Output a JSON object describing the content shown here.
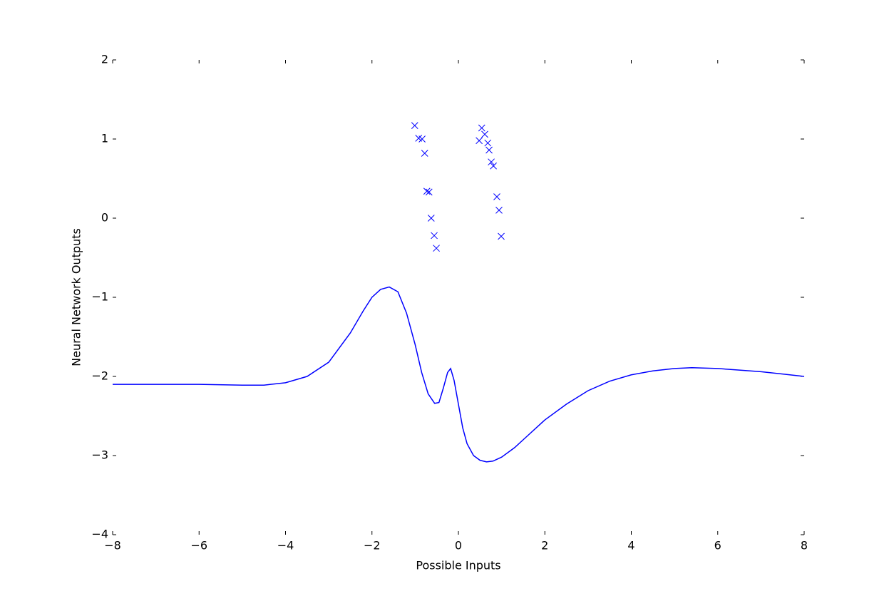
{
  "chart_data": {
    "type": "line",
    "xlabel": "Possible Inputs",
    "ylabel": "Neural Network Outputs",
    "xlim": [
      -8,
      8
    ],
    "ylim": [
      -4,
      2
    ],
    "xticks": [
      {
        "value": -8,
        "label": "−8"
      },
      {
        "value": -6,
        "label": "−6"
      },
      {
        "value": -4,
        "label": "−4"
      },
      {
        "value": -2,
        "label": "−2"
      },
      0,
      2,
      4,
      6,
      8
    ],
    "yticks": [
      {
        "value": -4,
        "label": "−4"
      },
      {
        "value": -3,
        "label": "−3"
      },
      {
        "value": -2,
        "label": "−2"
      },
      {
        "value": -1,
        "label": "−1"
      },
      0,
      1,
      2
    ],
    "series": [
      {
        "type": "line",
        "color": "#0000ff",
        "x": [
          -8,
          -7,
          -6,
          -5,
          -4.5,
          -4,
          -3.5,
          -3,
          -2.5,
          -2.2,
          -2,
          -1.8,
          -1.6,
          -1.4,
          -1.2,
          -1.0,
          -0.85,
          -0.7,
          -0.55,
          -0.45,
          -0.35,
          -0.25,
          -0.18,
          -0.1,
          0,
          0.1,
          0.2,
          0.35,
          0.5,
          0.65,
          0.8,
          1.0,
          1.3,
          1.6,
          2,
          2.5,
          3,
          3.5,
          4,
          4.5,
          5,
          5.4,
          6,
          6.5,
          7,
          7.5,
          8
        ],
        "values": [
          -2.1,
          -2.1,
          -2.1,
          -2.11,
          -2.11,
          -2.08,
          -2.0,
          -1.82,
          -1.45,
          -1.17,
          -1.0,
          -0.9,
          -0.87,
          -0.93,
          -1.2,
          -1.6,
          -1.95,
          -2.22,
          -2.34,
          -2.33,
          -2.15,
          -1.95,
          -1.9,
          -2.05,
          -2.35,
          -2.65,
          -2.85,
          -3.0,
          -3.06,
          -3.08,
          -3.07,
          -3.02,
          -2.9,
          -2.75,
          -2.55,
          -2.35,
          -2.18,
          -2.06,
          -1.98,
          -1.93,
          -1.9,
          -1.89,
          -1.9,
          -1.92,
          -1.94,
          -1.97,
          -2.0
        ]
      },
      {
        "type": "scatter",
        "color": "#0000ff",
        "x": [
          -1.01,
          -0.92,
          -0.84,
          -0.78,
          -0.73,
          -0.68,
          -0.63,
          -0.56,
          -0.51,
          0.48,
          0.54,
          0.61,
          0.68,
          0.71,
          0.76,
          0.81,
          0.89,
          0.94,
          0.99
        ],
        "values": [
          1.17,
          1.01,
          1.0,
          0.82,
          0.34,
          0.33,
          0.0,
          -0.22,
          -0.38,
          0.98,
          1.14,
          1.06,
          0.95,
          0.86,
          0.71,
          0.66,
          0.27,
          0.1,
          -0.23
        ]
      }
    ]
  }
}
